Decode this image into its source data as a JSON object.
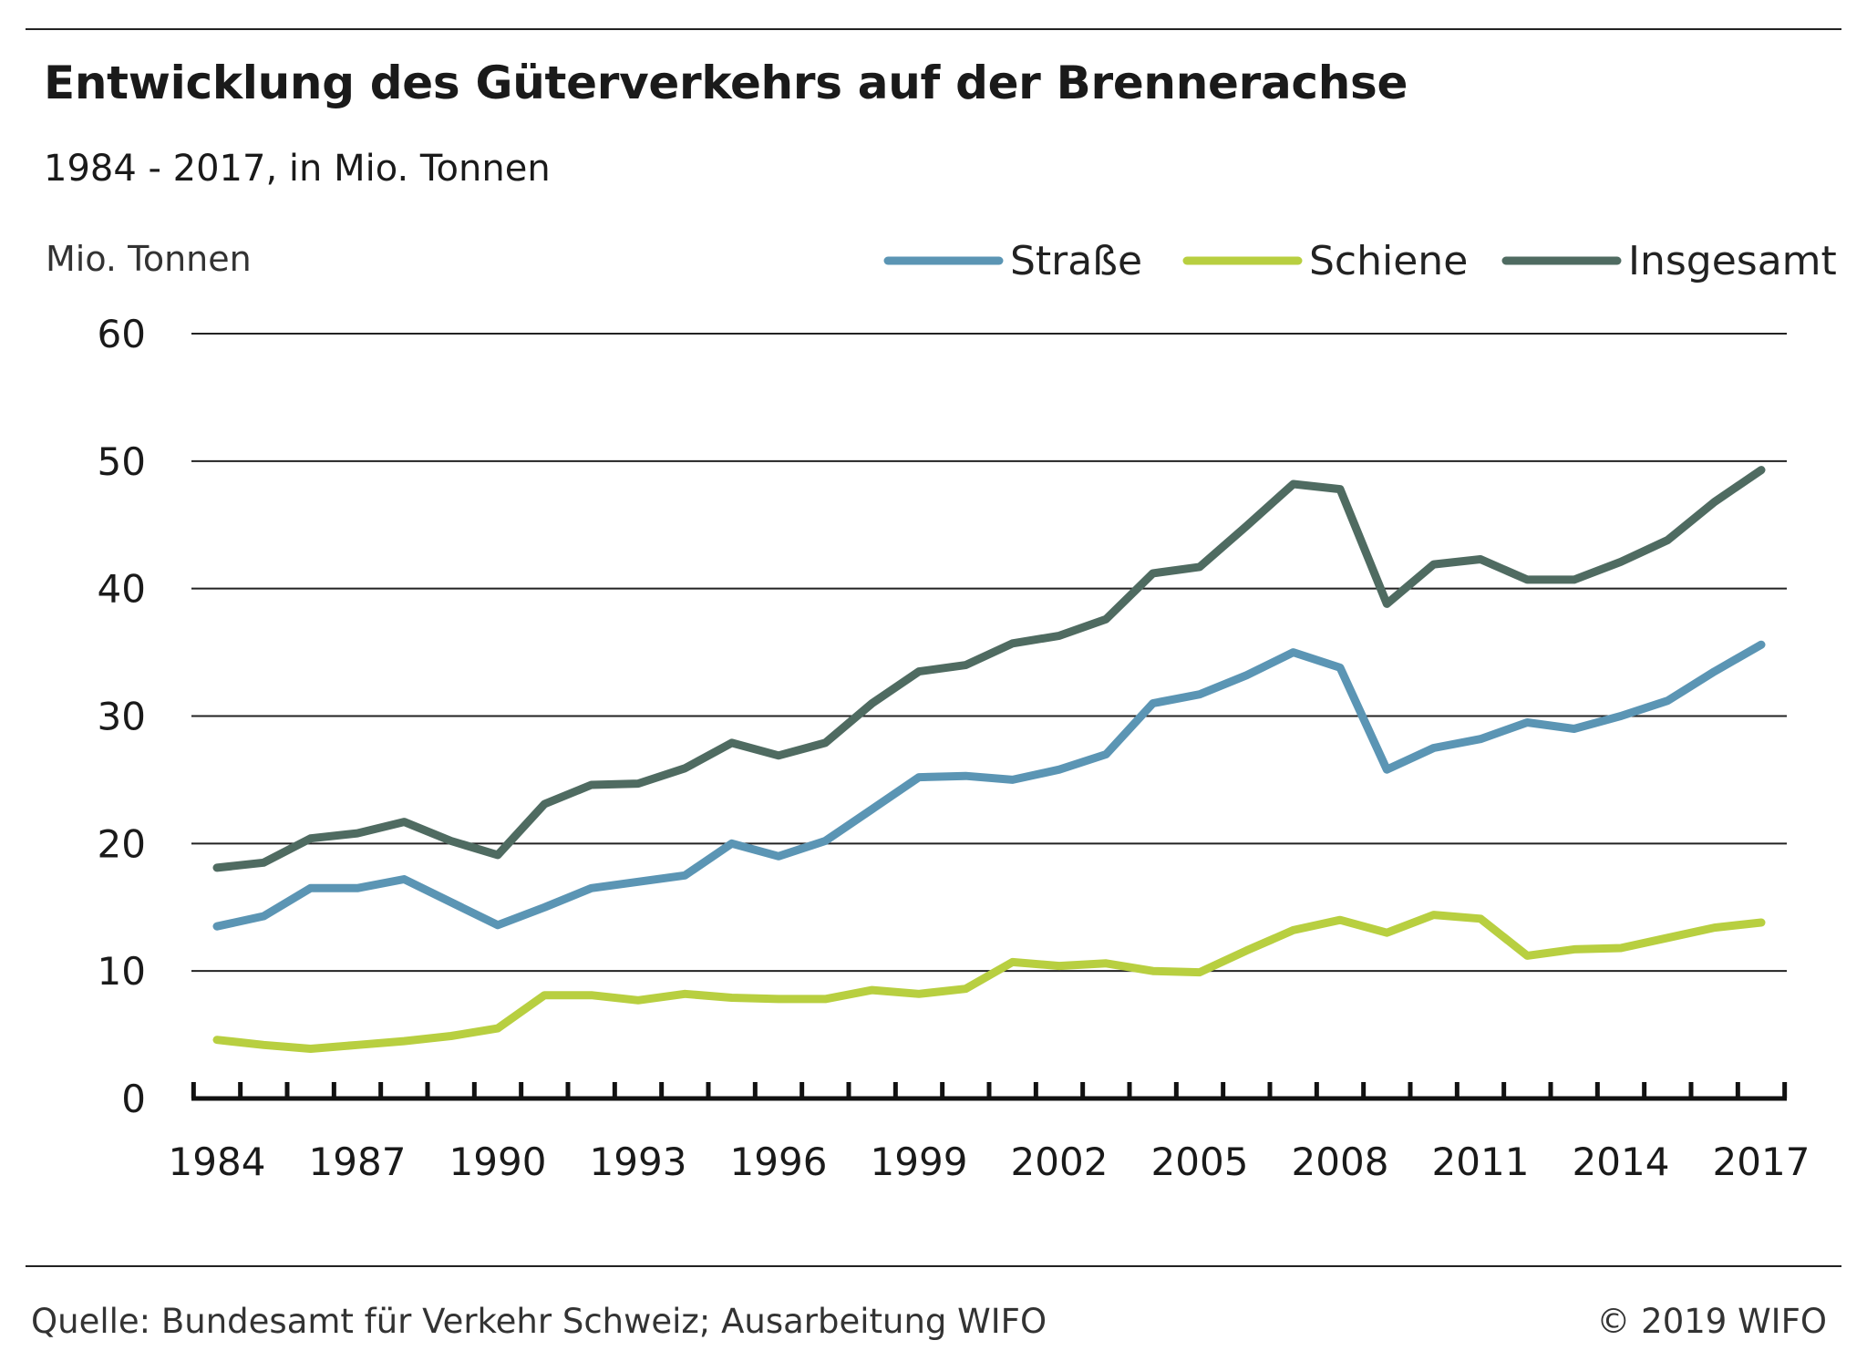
{
  "title": "Entwicklung des Güterverkehrs auf der Brennerachse",
  "subtitle": "1984 - 2017, in Mio. Tonnen",
  "source": "Quelle: Bundesamt für Verkehr Schweiz; Ausarbeitung WIFO",
  "copyright": "© 2019 WIFO",
  "chart_data": {
    "type": "line",
    "ylabel": "Mio. Tonnen",
    "xlabel": "",
    "ylim": [
      0,
      60
    ],
    "yticks": [
      0,
      10,
      20,
      30,
      40,
      50,
      60
    ],
    "xtick_labels": [
      "1984",
      "1987",
      "1990",
      "1993",
      "1996",
      "1999",
      "2002",
      "2005",
      "2008",
      "2011",
      "2014",
      "2017"
    ],
    "grid": "horizontal",
    "legend_position": "top-right",
    "x": [
      1984,
      1985,
      1986,
      1987,
      1988,
      1989,
      1990,
      1991,
      1992,
      1993,
      1994,
      1995,
      1996,
      1997,
      1998,
      1999,
      2000,
      2001,
      2002,
      2003,
      2004,
      2005,
      2006,
      2007,
      2008,
      2009,
      2010,
      2011,
      2012,
      2013,
      2014,
      2015,
      2016,
      2017
    ],
    "series": [
      {
        "name": "Straße",
        "color": "#5b95b4",
        "values": [
          13.5,
          14.3,
          16.5,
          16.5,
          17.2,
          15.4,
          13.6,
          15.0,
          16.5,
          17.0,
          17.5,
          20.0,
          19.0,
          20.2,
          22.7,
          25.2,
          25.3,
          25.0,
          25.8,
          27.0,
          31.0,
          31.7,
          33.2,
          35.0,
          33.8,
          25.8,
          27.5,
          28.2,
          29.5,
          29.0,
          30.0,
          31.2,
          33.5,
          35.6
        ]
      },
      {
        "name": "Schiene",
        "color": "#b8cf40",
        "values": [
          4.6,
          4.2,
          3.9,
          4.2,
          4.5,
          4.9,
          5.5,
          8.1,
          8.1,
          7.7,
          8.2,
          7.9,
          7.8,
          7.8,
          8.5,
          8.2,
          8.6,
          10.7,
          10.4,
          10.6,
          10.0,
          9.9,
          11.6,
          13.2,
          14.0,
          13.0,
          14.4,
          14.1,
          11.2,
          11.7,
          11.8,
          12.6,
          13.4,
          13.8
        ]
      },
      {
        "name": "Insgesamt",
        "color": "#4f6b61",
        "values": [
          18.1,
          18.5,
          20.4,
          20.8,
          21.7,
          20.2,
          19.1,
          23.1,
          24.6,
          24.7,
          25.9,
          27.9,
          26.9,
          27.9,
          31.0,
          33.5,
          34.0,
          35.7,
          36.3,
          37.6,
          41.2,
          41.7,
          44.9,
          48.2,
          47.8,
          38.8,
          41.9,
          42.3,
          40.7,
          40.7,
          42.1,
          43.8,
          46.8,
          49.3
        ]
      }
    ]
  }
}
